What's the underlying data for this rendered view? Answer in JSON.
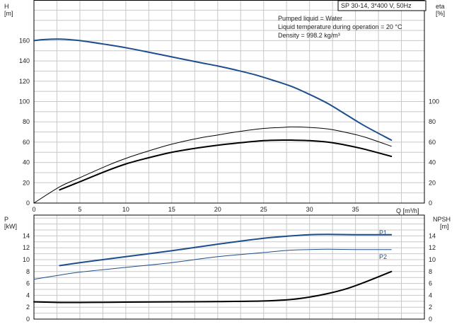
{
  "header": {
    "pump_title": "SP 30-14, 3*400 V, 50Hz",
    "info_lines": [
      "Pumped liquid = Water",
      "Liquid temperature during operation = 20 °C",
      "Density = 998.2 kg/m³"
    ]
  },
  "colors": {
    "blue": "#1f4e8c",
    "black": "#000000",
    "grid": "#c8c8c8",
    "axis": "#000000"
  },
  "chart_data": [
    {
      "type": "line",
      "panel": "top",
      "x_axis": {
        "label": "Q [m³/h]",
        "ticks": [
          "0",
          "5",
          "10",
          "15",
          "20",
          "25",
          "30",
          "35"
        ],
        "tick_values": [
          0,
          5,
          10,
          15,
          20,
          25,
          30,
          35
        ],
        "range": [
          0,
          42.5
        ]
      },
      "y_left": {
        "label_top": "H",
        "label_unit": "[m]",
        "ticks": [
          "0",
          "20",
          "40",
          "60",
          "80",
          "100",
          "120",
          "140",
          "160"
        ],
        "tick_values": [
          0,
          20,
          40,
          60,
          80,
          100,
          120,
          140,
          160
        ],
        "range": [
          0,
          200
        ]
      },
      "y_right": {
        "label_top": "eta",
        "label_unit": "[%]",
        "ticks": [
          "0",
          "20",
          "40",
          "60",
          "80",
          "100"
        ],
        "tick_values": [
          0,
          20,
          40,
          60,
          80,
          100
        ],
        "range": [
          0,
          200
        ]
      },
      "grid": true,
      "series": [
        {
          "key": "head",
          "color": "blue",
          "width": 2,
          "x": [
            0,
            1,
            2.8,
            5,
            8,
            10,
            12,
            15,
            18,
            20,
            22,
            24,
            26,
            28,
            30,
            32,
            34,
            36,
            38.9
          ],
          "y": [
            160,
            161,
            161.5,
            160,
            156,
            153,
            149.5,
            144,
            138.5,
            135,
            131,
            126.5,
            121,
            115,
            107,
            98,
            87,
            76,
            62
          ]
        },
        {
          "key": "efficiency_total",
          "color": "black",
          "width": 2,
          "x": [
            2.8,
            5,
            8,
            10,
            12,
            15,
            18,
            20,
            22,
            25,
            27,
            28,
            30,
            32,
            34,
            36,
            38.9
          ],
          "y": [
            13,
            21,
            32,
            38.5,
            43.5,
            50,
            54.5,
            57,
            59,
            61.5,
            62,
            62,
            61.5,
            60,
            57,
            53,
            46
          ]
        },
        {
          "key": "efficiency_hydraulic",
          "color": "black",
          "width": 1,
          "x": [
            0,
            2.8,
            5,
            8,
            10,
            12,
            15,
            18,
            20,
            22,
            25,
            27,
            28,
            30,
            32,
            34,
            36,
            38.9
          ],
          "y": [
            0,
            16,
            25,
            37,
            44,
            50,
            58,
            64,
            67,
            70,
            73.5,
            74.5,
            75,
            74.5,
            73,
            69.5,
            65,
            56
          ]
        }
      ]
    },
    {
      "type": "line",
      "panel": "bottom",
      "y_left": {
        "label_top": "P",
        "label_unit": "[kW]",
        "ticks": [
          "0",
          "2",
          "4",
          "6",
          "8",
          "10",
          "12",
          "14"
        ],
        "tick_values": [
          0,
          2,
          4,
          6,
          8,
          10,
          12,
          14
        ],
        "range": [
          0,
          17.5
        ]
      },
      "y_right": {
        "label_top": "NPSH",
        "label_unit": "[m]",
        "ticks": [
          "0",
          "2",
          "4",
          "6",
          "8",
          "10",
          "12",
          "14"
        ],
        "tick_values": [
          0,
          2,
          4,
          6,
          8,
          10,
          12,
          14
        ],
        "range": [
          0,
          17.5
        ]
      },
      "grid": true,
      "series": [
        {
          "key": "P1",
          "name": "P1",
          "color": "blue",
          "width": 2,
          "x": [
            2.8,
            5,
            10,
            15,
            20,
            25,
            28,
            30,
            32,
            35,
            38.9
          ],
          "y": [
            9,
            9.5,
            10.5,
            11.5,
            12.6,
            13.6,
            14,
            14.2,
            14.25,
            14.2,
            14.2
          ]
        },
        {
          "key": "P2",
          "name": "P2",
          "color": "blue",
          "width": 1,
          "x": [
            0,
            2.8,
            5,
            10,
            15,
            20,
            25,
            28,
            30,
            32,
            35,
            38.9
          ],
          "y": [
            6.7,
            7.4,
            7.9,
            8.7,
            9.5,
            10.5,
            11.2,
            11.6,
            11.7,
            11.75,
            11.7,
            11.7
          ]
        },
        {
          "key": "NPSH",
          "color": "black",
          "width": 2,
          "x": [
            0,
            2.8,
            5,
            10,
            15,
            20,
            25,
            28,
            30,
            32,
            34,
            36,
            38.9
          ],
          "y": [
            2.9,
            2.8,
            2.8,
            2.85,
            2.9,
            2.95,
            3.05,
            3.3,
            3.7,
            4.3,
            5.1,
            6.2,
            8
          ]
        }
      ]
    }
  ]
}
